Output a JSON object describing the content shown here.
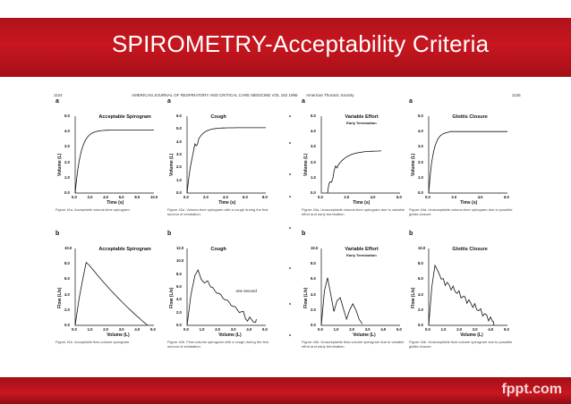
{
  "slide": {
    "title": "SPIROMETRY-Acceptability Criteria",
    "brand": "fppt.com",
    "colors": {
      "banner": "#b9141d",
      "bottom_bar": "#b9141d",
      "text": "#ffffff"
    }
  },
  "left_page": {
    "page_number": "1124",
    "journal_header": "AMERICAN JOURNAL OF RESPIRATORY AND CRITICAL CARE MEDICINE VOL 152 1995",
    "panels": [
      {
        "letter": "a",
        "title": "Acceptable Spirogram",
        "ylabel": "Volume (L)",
        "xlabel": "Time (s)",
        "yticks": [
          "5.0",
          "4.0",
          "3.0",
          "2.0",
          "1.0",
          "0.0"
        ],
        "xticks": [
          "0.0",
          "2.0",
          "4.0",
          "6.0",
          "8.0",
          "10.0"
        ],
        "caption": "Figure 41a. Acceptable volume-time spirogram."
      },
      {
        "letter": "a",
        "title": "Cough",
        "ylabel": "Volume (L)",
        "xlabel": "Time (s)",
        "yticks": [
          "6.0",
          "5.0",
          "4.0",
          "3.0",
          "2.0",
          "1.0",
          "0.0"
        ],
        "xticks": [
          "0.0",
          "2.0",
          "4.0",
          "6.0",
          "8.0"
        ],
        "caption": "Figure 42a. Volume-time spirogram with a cough during the first second of exhalation."
      },
      {
        "letter": "b",
        "title": "Acceptable Spirogram",
        "ylabel": "Flow (L/s)",
        "xlabel": "Volume (L)",
        "yticks": [
          "10.0",
          "8.0",
          "6.0",
          "4.0",
          "2.0",
          "0.0"
        ],
        "xticks": [
          "0.0",
          "1.0",
          "2.0",
          "3.0",
          "4.0",
          "5.0"
        ],
        "caption": "Figure 41b. Acceptable flow-volume spirogram."
      },
      {
        "letter": "b",
        "title": "Cough",
        "ylabel": "Flow (L/s)",
        "xlabel": "Volume (L)",
        "yticks": [
          "12.0",
          "10.0",
          "8.0",
          "6.0",
          "4.0",
          "2.0",
          "0.0"
        ],
        "xticks": [
          "0.0",
          "1.0",
          "2.0",
          "3.0",
          "4.0",
          "5.0"
        ],
        "annotation": "one second",
        "caption": "Figure 42b. Flow-volume spirogram with a cough during the first second of exhalation."
      }
    ]
  },
  "right_page": {
    "page_number": "1125",
    "journal_header": "American Thoracic Society",
    "panels": [
      {
        "letter": "a",
        "title": "Variable Effort",
        "subtitle": "Early Termination",
        "ylabel": "Volume (L)",
        "xlabel": "Time (s)",
        "yticks": [
          "5.0",
          "4.0",
          "3.0",
          "2.0",
          "1.0",
          "0.0"
        ],
        "xticks": [
          "0.0",
          "2.0",
          "4.0",
          "6.0"
        ],
        "caption": "Figure 43a. Unacceptable volume-time spirogram due to variable effort and early termination."
      },
      {
        "letter": "a",
        "title": "Glottis Closure",
        "ylabel": "Volume (L)",
        "xlabel": "Time (s)",
        "yticks": [
          "5.0",
          "4.0",
          "3.0",
          "2.0",
          "1.0",
          "0.0"
        ],
        "xticks": [
          "0.0",
          "2.0",
          "4.0",
          "6.0"
        ],
        "caption": "Figure 44a. Unacceptable volume-time spirogram due to possible glottis closure."
      },
      {
        "letter": "b",
        "title": "Variable Effort",
        "subtitle": "Early Termination",
        "ylabel": "Flow (L/s)",
        "xlabel": "Volume (L)",
        "yticks": [
          "10.0",
          "8.0",
          "6.0",
          "4.0",
          "2.0",
          "0.0"
        ],
        "xticks": [
          "0.0",
          "1.0",
          "2.0",
          "3.0",
          "4.0",
          "5.0"
        ],
        "caption": "Figure 43b. Unacceptable flow-volume spirogram due to variable effort and early termination."
      },
      {
        "letter": "b",
        "title": "Glottis Closure",
        "ylabel": "Flow (L/s)",
        "xlabel": "Volume (L)",
        "yticks": [
          "10.0",
          "8.0",
          "6.0",
          "4.0",
          "2.0",
          "0.0"
        ],
        "xticks": [
          "0.0",
          "1.0",
          "2.0",
          "3.0",
          "4.0",
          "5.0"
        ],
        "caption": "Figure 44b. Unacceptable flow-volume spirogram due to possible glottis closure."
      }
    ]
  }
}
